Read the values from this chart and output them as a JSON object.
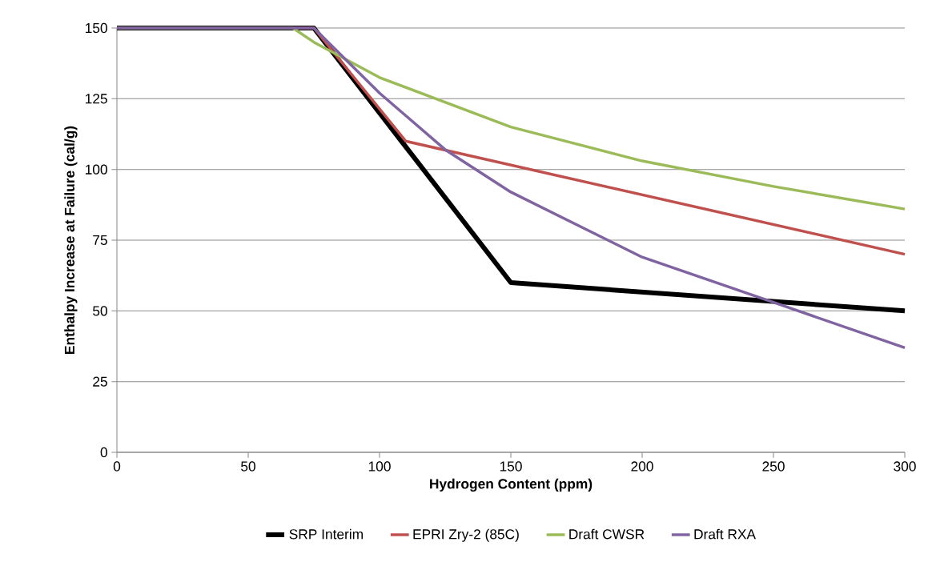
{
  "chart_data": {
    "type": "line",
    "xlabel": "Hydrogen Content (ppm)",
    "ylabel": "Enthalpy Increase at Failure (cal/g)",
    "xlim": [
      0,
      300
    ],
    "ylim": [
      0,
      150
    ],
    "xticks": [
      0,
      50,
      100,
      150,
      200,
      250,
      300
    ],
    "yticks": [
      0,
      25,
      50,
      75,
      100,
      125,
      150
    ],
    "grid": "y",
    "legend": "bottom",
    "marker": "none",
    "line_style": "solid",
    "series": [
      {
        "name": "SRP Interim",
        "color": "#000000",
        "x": [
          0,
          75,
          150,
          300
        ],
        "values": [
          150,
          150,
          60,
          50
        ]
      },
      {
        "name": "EPRI Zry-2 (85C)",
        "color": "#c0504d",
        "x": [
          0,
          75,
          110,
          300
        ],
        "values": [
          150,
          150,
          110,
          70
        ]
      },
      {
        "name": "Draft CWSR",
        "color": "#9bbb59",
        "x": [
          0,
          67,
          75,
          100,
          150,
          200,
          250,
          300
        ],
        "values": [
          150,
          150,
          145,
          132.5,
          115,
          103,
          94,
          86
        ]
      },
      {
        "name": "Draft RXA",
        "color": "#8064a2",
        "x": [
          0,
          75,
          100,
          125,
          150,
          200,
          250,
          300
        ],
        "values": [
          150,
          150,
          127,
          107,
          92,
          69,
          53,
          37
        ]
      }
    ]
  }
}
